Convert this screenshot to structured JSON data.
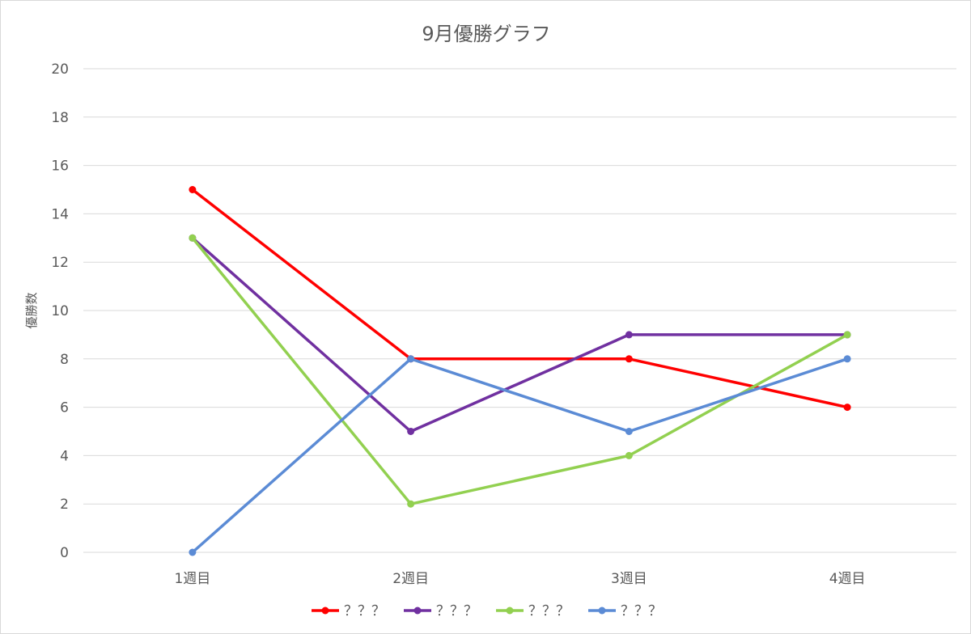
{
  "chart_data": {
    "type": "line",
    "title": "9月優勝グラフ",
    "xlabel": "",
    "ylabel": "優勝数",
    "categories": [
      "1週目",
      "2週目",
      "3週目",
      "4週目"
    ],
    "ylim": [
      0,
      20
    ],
    "yticks": [
      "0",
      "2",
      "4",
      "6",
      "8",
      "10",
      "12",
      "14",
      "16",
      "18",
      "20"
    ],
    "grid": true,
    "legend_position": "bottom",
    "series": [
      {
        "name": "？？？",
        "color": "#ff0000",
        "values": [
          15,
          8,
          8,
          6
        ]
      },
      {
        "name": "？？？",
        "color": "#7030a0",
        "values": [
          13,
          5,
          9,
          9
        ]
      },
      {
        "name": "？？？",
        "color": "#92d050",
        "values": [
          13,
          2,
          4,
          9
        ]
      },
      {
        "name": "？？？",
        "color": "#5b8bd5",
        "values": [
          0,
          8,
          5,
          8
        ]
      }
    ]
  }
}
